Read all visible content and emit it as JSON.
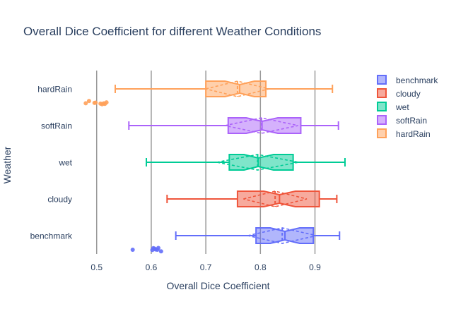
{
  "chart_data": {
    "type": "box",
    "orientation": "horizontal",
    "title": "Overall Dice Coefficient for different Weather Conditions",
    "xlabel": "Overall Dice Coefficient",
    "ylabel": "Weather",
    "xlim": [
      0.455,
      0.99
    ],
    "xticks": [
      0.5,
      0.6,
      0.7,
      0.8,
      0.9
    ],
    "xtick_labels": [
      "0.5",
      "0.6",
      "0.7",
      "0.8",
      "0.9"
    ],
    "grid": "vertical",
    "legend_position": "top-right",
    "notched": true,
    "show_mean_and_sd": true,
    "categories": [
      "benchmark",
      "cloudy",
      "wet",
      "softRain",
      "hardRain"
    ],
    "series": [
      {
        "name": "benchmark",
        "color": "#636efa",
        "fill": "#636efa",
        "lowerfence": 0.645,
        "q1": 0.792,
        "median": 0.845,
        "q3": 0.897,
        "upperfence": 0.945,
        "notch": [
          0.818,
          0.872
        ],
        "mean": 0.84,
        "sd": 0.063,
        "outliers": [
          0.566,
          0.602,
          0.604,
          0.606,
          0.608,
          0.611,
          0.613,
          0.618
        ]
      },
      {
        "name": "cloudy",
        "color": "#ef553b",
        "fill": "#ef553b",
        "lowerfence": 0.629,
        "q1": 0.758,
        "median": 0.835,
        "q3": 0.908,
        "upperfence": 0.94,
        "notch": [
          0.806,
          0.864
        ],
        "mean": 0.827,
        "sd": 0.058,
        "outliers": []
      },
      {
        "name": "wet",
        "color": "#00cc96",
        "fill": "#00cc96",
        "lowerfence": 0.591,
        "q1": 0.743,
        "median": 0.796,
        "q3": 0.86,
        "upperfence": 0.955,
        "notch": [
          0.77,
          0.824
        ],
        "mean": 0.795,
        "sd": 0.075,
        "outliers": []
      },
      {
        "name": "softRain",
        "color": "#ab63fa",
        "fill": "#ab63fa",
        "lowerfence": 0.559,
        "q1": 0.741,
        "median": 0.803,
        "q3": 0.874,
        "upperfence": 0.943,
        "notch": [
          0.774,
          0.832
        ],
        "mean": 0.802,
        "sd": 0.067,
        "outliers": []
      },
      {
        "name": "hardRain",
        "color": "#ffa15a",
        "fill": "#ffa15a",
        "lowerfence": 0.534,
        "q1": 0.7,
        "median": 0.762,
        "q3": 0.81,
        "upperfence": 0.932,
        "notch": [
          0.735,
          0.789
        ],
        "mean": 0.758,
        "sd": 0.058,
        "outliers": [
          0.48,
          0.486,
          0.496,
          0.498,
          0.507,
          0.51,
          0.513,
          0.515,
          0.518
        ]
      }
    ],
    "legend": [
      "benchmark",
      "cloudy",
      "wet",
      "softRain",
      "hardRain"
    ]
  }
}
